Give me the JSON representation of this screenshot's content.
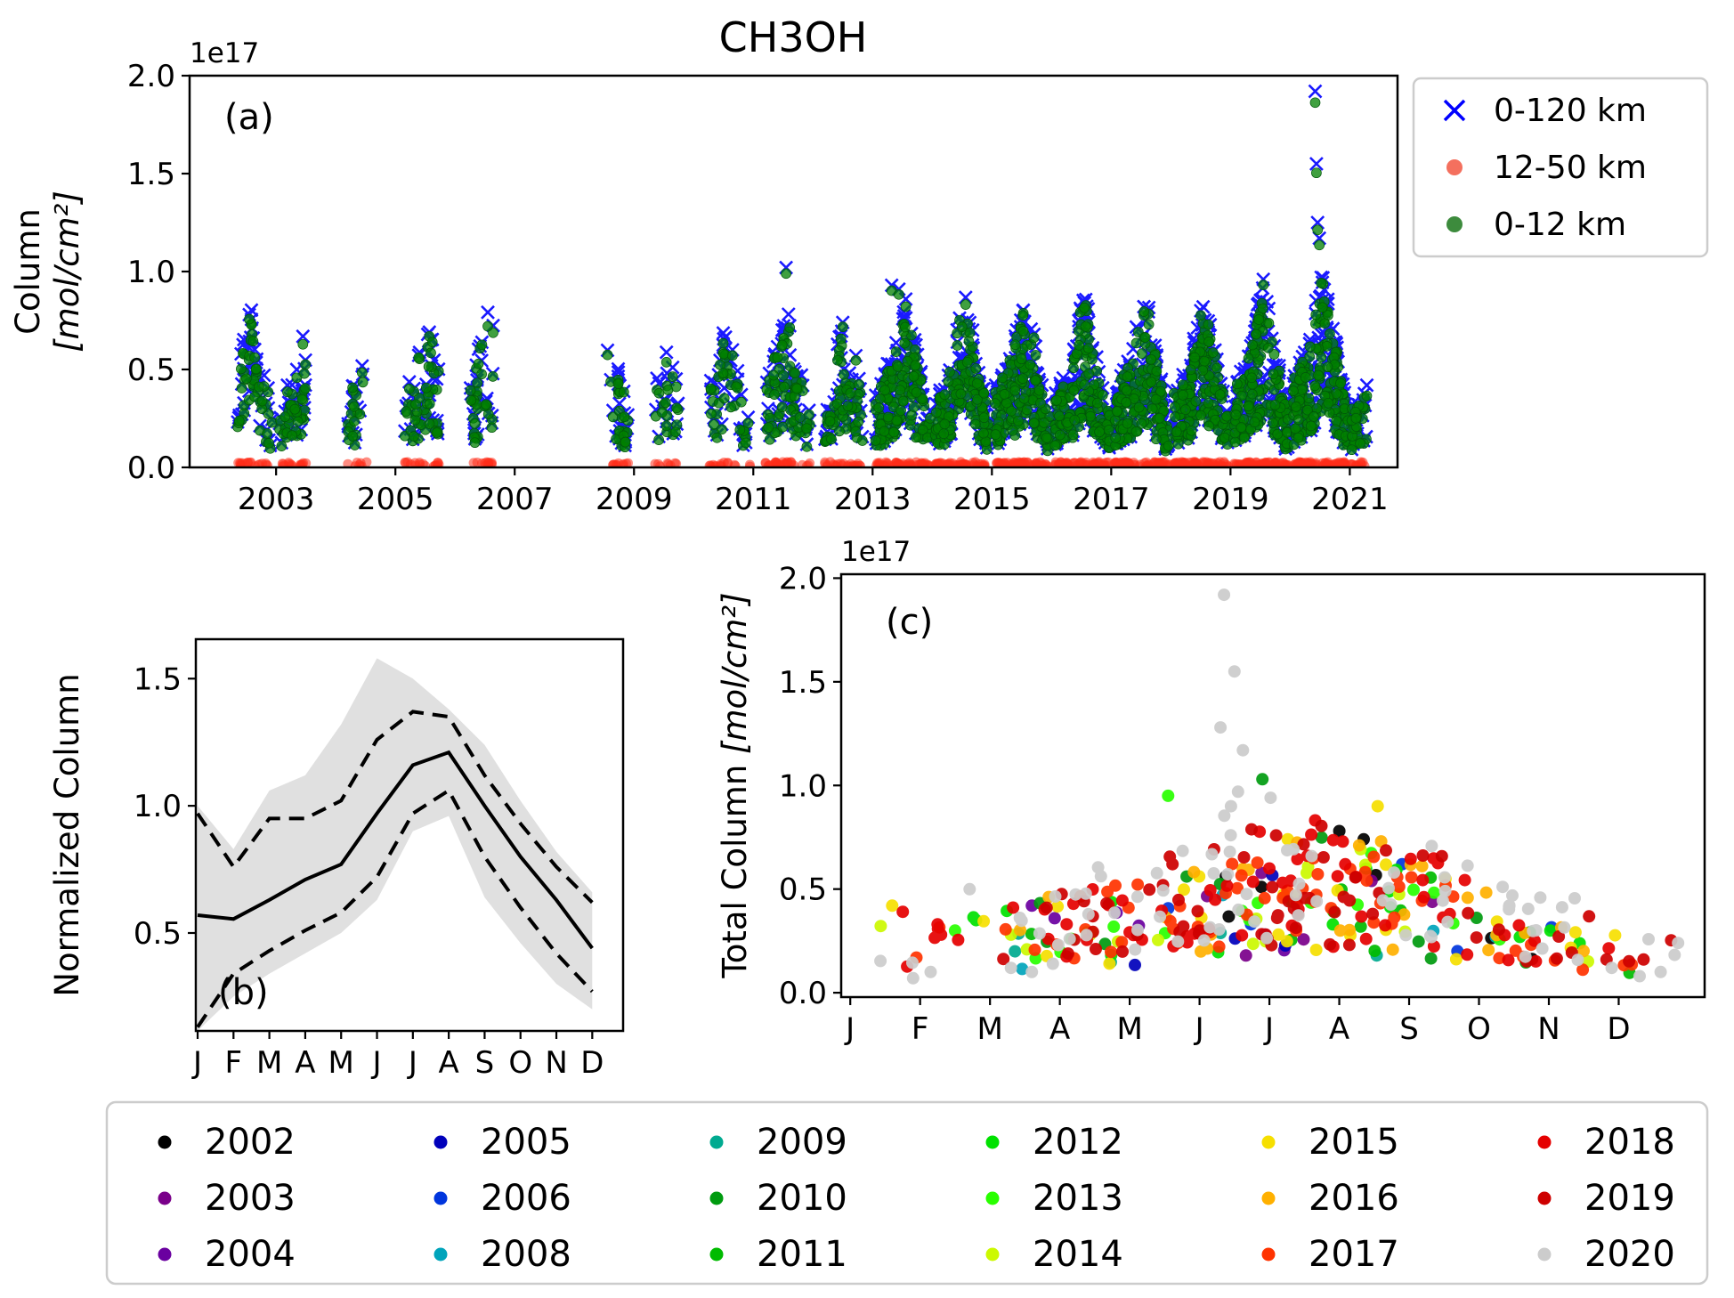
{
  "figure": {
    "title": "CH3OH",
    "panels": {
      "a": {
        "label": "(a)",
        "ylabel_line1": "Column",
        "ylabel_line2": "[mol/cm²]",
        "offset_text": "1e17"
      },
      "b": {
        "label": "(b)",
        "ylabel": "Normalized Column"
      },
      "c": {
        "label": "(c)",
        "ylabel_text": "Total Column ",
        "ylabel_units": "[mol/cm²]",
        "offset_text": "1e17"
      }
    },
    "legend_a": {
      "items": [
        {
          "label": "0-120 km",
          "marker": "x",
          "color": "#0000ff"
        },
        {
          "label": "12-50 km",
          "marker": "circle",
          "color": "#f4705e"
        },
        {
          "label": "0-12 km",
          "marker": "circle",
          "color": "#3d8b3d"
        }
      ]
    },
    "legend_years": {
      "columns": [
        [
          {
            "label": "2002",
            "color": "#000000"
          },
          {
            "label": "2003",
            "color": "#7a008a"
          },
          {
            "label": "2004",
            "color": "#6a00a0"
          }
        ],
        [
          {
            "label": "2005",
            "color": "#0000bb"
          },
          {
            "label": "2006",
            "color": "#0035dd"
          },
          {
            "label": "2008",
            "color": "#00a4bb"
          }
        ],
        [
          {
            "label": "2009",
            "color": "#00aa90"
          },
          {
            "label": "2010",
            "color": "#009b0f"
          },
          {
            "label": "2011",
            "color": "#00bb00"
          }
        ],
        [
          {
            "label": "2012",
            "color": "#00e100"
          },
          {
            "label": "2013",
            "color": "#29ff00"
          },
          {
            "label": "2014",
            "color": "#ccf900"
          }
        ],
        [
          {
            "label": "2015",
            "color": "#f6df00"
          },
          {
            "label": "2016",
            "color": "#ffb000"
          },
          {
            "label": "2017",
            "color": "#ff3300"
          }
        ],
        [
          {
            "label": "2018",
            "color": "#e50000"
          },
          {
            "label": "2019",
            "color": "#ce0000"
          },
          {
            "label": "2020",
            "color": "#cccccc"
          }
        ]
      ]
    }
  },
  "chart_data": [
    {
      "id": "a",
      "type": "scatter",
      "title": "CH3OH",
      "ylabel": "Column [mol/cm²]",
      "y_units": "1e17 mol/cm²",
      "xlim": [
        2001.55,
        2021.8
      ],
      "ylim": [
        0,
        2.0
      ],
      "xticks": [
        2003,
        2005,
        2007,
        2009,
        2011,
        2013,
        2015,
        2017,
        2019,
        2021
      ],
      "xticklabels": [
        "2003",
        "2005",
        "2007",
        "2009",
        "2011",
        "2013",
        "2015",
        "2017",
        "2019",
        "2021"
      ],
      "yticks": [
        0,
        0.5,
        1.0,
        1.5,
        2.0
      ],
      "yticklabels": [
        "0.0",
        "0.5",
        "1.0",
        "1.5",
        "2.0"
      ],
      "grid": false,
      "legend_position": "upper right outside",
      "series": [
        {
          "name": "0-120 km",
          "marker": "x",
          "color": "#0000ff"
        },
        {
          "name": "12-50 km",
          "marker": "o",
          "color": "#ff2d1a",
          "value_range": [
            0.004,
            0.028
          ]
        },
        {
          "name": "0-12 km",
          "marker": "o",
          "color": "#008000"
        }
      ],
      "seasonal_shape": [
        0.57,
        0.555,
        0.63,
        0.71,
        0.77,
        0.97,
        1.16,
        1.21,
        1.0,
        0.8,
        0.63,
        0.44
      ],
      "year_coverage": [
        {
          "year": 2002,
          "start": 0.35,
          "end": 0.95,
          "n": 45,
          "peak": 0.7
        },
        {
          "year": 2003,
          "start": 0.05,
          "end": 0.5,
          "n": 40,
          "peak": 0.6
        },
        {
          "year": 2004,
          "start": 0.2,
          "end": 0.55,
          "n": 18,
          "peak": 0.55
        },
        {
          "year": 2005,
          "start": 0.15,
          "end": 0.75,
          "n": 45,
          "peak": 0.6
        },
        {
          "year": 2006,
          "start": 0.25,
          "end": 0.65,
          "n": 30,
          "peak": 0.65
        },
        {
          "year": 2008,
          "start": 0.55,
          "end": 0.9,
          "n": 25,
          "peak": 0.58
        },
        {
          "year": 2009,
          "start": 0.35,
          "end": 0.75,
          "n": 20,
          "peak": 0.48
        },
        {
          "year": 2010,
          "start": 0.25,
          "end": 0.95,
          "n": 40,
          "peak": 0.58
        },
        {
          "year": 2011,
          "start": 0.2,
          "end": 0.95,
          "n": 70,
          "peak": 0.65
        },
        {
          "year": 2012,
          "start": 0.2,
          "end": 0.85,
          "n": 60,
          "peak": 0.62
        },
        {
          "year": 2013,
          "start": 0.05,
          "end": 0.97,
          "n": 135,
          "peak": 0.7
        },
        {
          "year": 2014,
          "start": 0.05,
          "end": 0.97,
          "n": 135,
          "peak": 0.68
        },
        {
          "year": 2015,
          "start": 0.05,
          "end": 0.97,
          "n": 145,
          "peak": 0.7
        },
        {
          "year": 2016,
          "start": 0.05,
          "end": 0.97,
          "n": 145,
          "peak": 0.68
        },
        {
          "year": 2017,
          "start": 0.05,
          "end": 0.97,
          "n": 155,
          "peak": 0.7
        },
        {
          "year": 2018,
          "start": 0.05,
          "end": 0.97,
          "n": 155,
          "peak": 0.7
        },
        {
          "year": 2019,
          "start": 0.05,
          "end": 0.97,
          "n": 155,
          "peak": 0.74
        },
        {
          "year": 2020,
          "start": 0.05,
          "end": 0.97,
          "n": 165,
          "peak": 0.8
        },
        {
          "year": 2021,
          "start": 0.02,
          "end": 0.3,
          "n": 30,
          "peak": 0.55
        }
      ],
      "outliers": [
        [
          2002.55,
          0.78
        ],
        [
          2011.55,
          1.02
        ],
        [
          2012.5,
          0.74
        ],
        [
          2013.32,
          0.93
        ],
        [
          2013.44,
          0.91
        ],
        [
          2014.5,
          0.74
        ],
        [
          2015.52,
          0.8
        ],
        [
          2016.55,
          0.84
        ],
        [
          2017.55,
          0.82
        ],
        [
          2018.5,
          0.8
        ],
        [
          2019.55,
          0.96
        ],
        [
          2020.42,
          1.92
        ],
        [
          2020.44,
          1.55
        ],
        [
          2020.46,
          1.25
        ],
        [
          2020.49,
          1.17
        ],
        [
          2020.52,
          0.97
        ]
      ],
      "rng_seed": 1337
    },
    {
      "id": "b",
      "type": "line",
      "ylabel": "Normalized Column",
      "xticklabels": [
        "J",
        "F",
        "M",
        "A",
        "M",
        "J",
        "J",
        "A",
        "S",
        "O",
        "N",
        "D"
      ],
      "yticks": [
        0.5,
        1.0,
        1.5
      ],
      "yticklabels": [
        "0.5",
        "1.0",
        "1.5"
      ],
      "ylim": [
        0.115,
        1.655
      ],
      "series": [
        {
          "name": "monthly mean",
          "style": "solid",
          "values": [
            0.57,
            0.555,
            0.63,
            0.71,
            0.77,
            0.97,
            1.16,
            1.21,
            1.0,
            0.8,
            0.63,
            0.44
          ]
        },
        {
          "name": "mean + std",
          "style": "dashed",
          "values": [
            0.97,
            0.76,
            0.95,
            0.95,
            1.02,
            1.26,
            1.37,
            1.35,
            1.12,
            0.93,
            0.76,
            0.62
          ]
        },
        {
          "name": "mean - std",
          "style": "dashed",
          "values": [
            0.13,
            0.34,
            0.43,
            0.51,
            0.58,
            0.72,
            0.97,
            1.06,
            0.8,
            0.6,
            0.42,
            0.27
          ]
        }
      ],
      "band": {
        "upper": [
          1.0,
          0.83,
          1.06,
          1.12,
          1.32,
          1.58,
          1.5,
          1.38,
          1.24,
          1.02,
          0.82,
          0.66
        ],
        "lower": [
          0.115,
          0.25,
          0.34,
          0.42,
          0.5,
          0.63,
          0.9,
          0.96,
          0.64,
          0.46,
          0.3,
          0.2
        ],
        "color": "#dddddd"
      }
    },
    {
      "id": "c",
      "type": "scatter",
      "ylabel": "Total Column [mol/cm²]",
      "y_units": "1e17 mol/cm²",
      "xticklabels": [
        "J",
        "F",
        "M",
        "A",
        "M",
        "J",
        "J",
        "A",
        "S",
        "O",
        "N",
        "D"
      ],
      "yticks": [
        0,
        0.5,
        1.0,
        1.5,
        2.0
      ],
      "yticklabels": [
        "0.0",
        "0.5",
        "1.0",
        "1.5",
        "2.0"
      ],
      "ylim": [
        0,
        2.0
      ],
      "years": [
        {
          "year": 2002,
          "color": "#000000",
          "n": 6,
          "peak": 0.6,
          "extra": [
            [
              7.0,
              0.78
            ],
            [
              7.35,
              0.74
            ]
          ]
        },
        {
          "year": 2003,
          "color": "#7a008a",
          "n": 6,
          "peak": 0.5,
          "extra": []
        },
        {
          "year": 2004,
          "color": "#6a00a0",
          "n": 5,
          "peak": 0.5,
          "extra": [
            [
              2.6,
              0.42
            ]
          ]
        },
        {
          "year": 2005,
          "color": "#0000bb",
          "n": 4,
          "peak": 0.5,
          "extra": []
        },
        {
          "year": 2006,
          "color": "#0035dd",
          "n": 4,
          "peak": 0.55,
          "extra": [
            [
              7.9,
              0.62
            ]
          ]
        },
        {
          "year": 2008,
          "color": "#00a4bb",
          "n": 5,
          "peak": 0.5,
          "extra": []
        },
        {
          "year": 2009,
          "color": "#00aa90",
          "n": 5,
          "peak": 0.45,
          "extra": []
        },
        {
          "year": 2010,
          "color": "#009b0f",
          "n": 10,
          "peak": 0.6,
          "extra": [
            [
              5.9,
              1.03
            ]
          ]
        },
        {
          "year": 2011,
          "color": "#00bb00",
          "n": 10,
          "peak": 0.6,
          "extra": []
        },
        {
          "year": 2012,
          "color": "#00e100",
          "n": 14,
          "peak": 0.6,
          "extra": [
            [
              1.8,
              0.35
            ]
          ]
        },
        {
          "year": 2013,
          "color": "#29ff00",
          "n": 16,
          "peak": 0.65,
          "extra": [
            [
              4.55,
              0.95
            ],
            [
              1.5,
              0.3
            ]
          ]
        },
        {
          "year": 2014,
          "color": "#ccf900",
          "n": 16,
          "peak": 0.6,
          "extra": [
            [
              2.3,
              0.28
            ]
          ]
        },
        {
          "year": 2015,
          "color": "#f6df00",
          "n": 22,
          "peak": 0.62,
          "extra": [
            [
              0.6,
              0.42
            ],
            [
              7.55,
              0.9
            ]
          ]
        },
        {
          "year": 2016,
          "color": "#ffb000",
          "n": 26,
          "peak": 0.62,
          "extra": [
            [
              7.6,
              0.73
            ]
          ]
        },
        {
          "year": 2017,
          "color": "#ff3300",
          "n": 60,
          "peak": 0.66,
          "extra": []
        },
        {
          "year": 2018,
          "color": "#e50000",
          "n": 65,
          "peak": 0.66,
          "extra": [
            [
              1.25,
              0.33
            ],
            [
              1.3,
              0.28
            ]
          ]
        },
        {
          "year": 2019,
          "color": "#ce0000",
          "n": 65,
          "peak": 0.7,
          "extra": []
        },
        {
          "year": 2020,
          "color": "#cccccc",
          "n": 75,
          "peak": 0.78,
          "extra": [
            [
              5.35,
              1.92
            ],
            [
              5.5,
              1.55
            ],
            [
              5.3,
              1.28
            ],
            [
              5.62,
              1.17
            ],
            [
              5.55,
              0.97
            ],
            [
              5.45,
              0.9
            ],
            [
              0.9,
              0.07
            ],
            [
              1.15,
              0.1
            ],
            [
              2.3,
              0.12
            ],
            [
              2.6,
              0.1
            ],
            [
              2.9,
              0.14
            ],
            [
              10.9,
              0.12
            ],
            [
              11.3,
              0.08
            ],
            [
              11.6,
              0.1
            ],
            [
              11.85,
              0.24
            ]
          ]
        }
      ],
      "rng_seed": 7331
    }
  ]
}
